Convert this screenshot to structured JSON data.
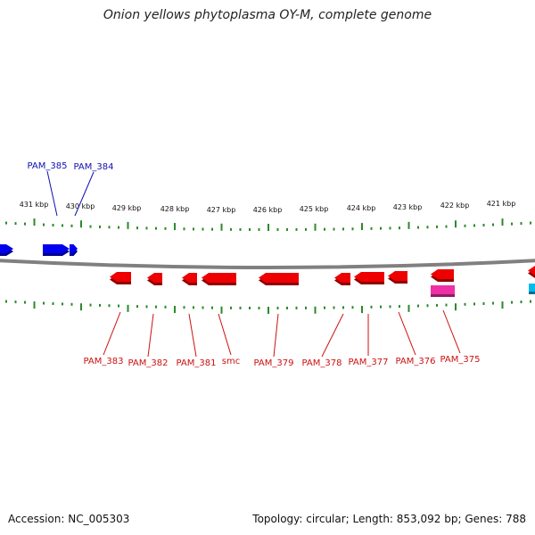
{
  "title": "Onion yellows phytoplasma OY-M, complete genome",
  "footer": {
    "accession": "Accession: NC_005303",
    "summary": "Topology: circular; Length: 853,092 bp; Genes: 788"
  },
  "colors": {
    "forward_gene": "#0000ee",
    "reverse_gene": "#ee0000",
    "other_feature_magenta": "#ee2fa6",
    "other_feature_cyan": "#00bbee",
    "backbone": "#808080",
    "ticks": "#2a8a2a",
    "forward_label": "#1010b0",
    "reverse_label": "#cc1010"
  },
  "scale_labels": [
    "431 kbp",
    "430 kbp",
    "429 kbp",
    "428 kbp",
    "427 kbp",
    "426 kbp",
    "425 kbp",
    "424 kbp",
    "423 kbp",
    "422 kbp",
    "421 kbp"
  ],
  "forward_genes": [
    {
      "label": ""
    },
    {
      "label": "PAM_385"
    },
    {
      "label": "PAM_384"
    }
  ],
  "reverse_genes": [
    {
      "label": "PAM_383"
    },
    {
      "label": "PAM_382"
    },
    {
      "label": "PAM_381"
    },
    {
      "label": "smc"
    },
    {
      "label": "PAM_379"
    },
    {
      "label": "PAM_378"
    },
    {
      "label": "PAM_377"
    },
    {
      "label": "PAM_376"
    },
    {
      "label": "PAM_375"
    },
    {
      "label": ""
    }
  ],
  "other_features": [
    {
      "color_key": "other_feature_magenta"
    },
    {
      "color_key": "other_feature_cyan"
    }
  ]
}
